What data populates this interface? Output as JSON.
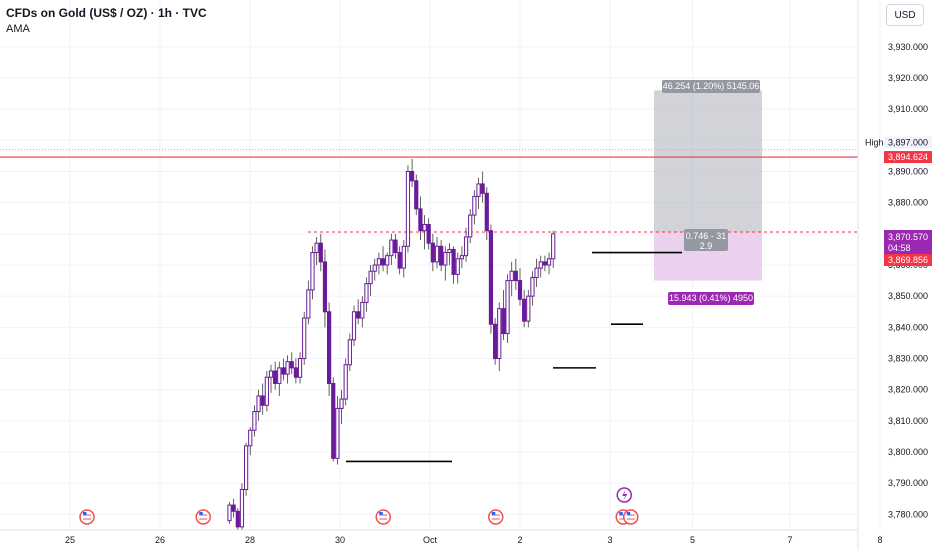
{
  "header": {
    "title": "CFDs on Gold (US$ / OZ) · 1h · TVC",
    "indicator": "AMA",
    "currency": "USD"
  },
  "colors": {
    "candle": "#6a1b9a",
    "wick": "#3b3b3b",
    "resistance": "#f23645",
    "target_zone": "#b2b5be",
    "stop_zone": "#e1bee7",
    "price_tag": "#9c27b0",
    "event_red": "#ef5350"
  },
  "chart_data": {
    "type": "candlestick",
    "symbol": "CFDs on Gold (US$ / OZ)",
    "interval": "1h",
    "source": "TVC",
    "ylim": [
      3775,
      3945
    ],
    "y_ticks": [
      {
        "value": 3780,
        "label": "3,780.000"
      },
      {
        "value": 3790,
        "label": "3,790.000"
      },
      {
        "value": 3800,
        "label": "3,800.000"
      },
      {
        "value": 3810,
        "label": "3,810.000"
      },
      {
        "value": 3820,
        "label": "3,820.000"
      },
      {
        "value": 3830,
        "label": "3,830.000"
      },
      {
        "value": 3840,
        "label": "3,840.000"
      },
      {
        "value": 3850,
        "label": "3,850.000"
      },
      {
        "value": 3860,
        "label": "3,860.000"
      },
      {
        "value": 3870,
        "label": "3,870.000"
      },
      {
        "value": 3880,
        "label": "3,880.000"
      },
      {
        "value": 3890,
        "label": "3,890.000"
      },
      {
        "value": 3900,
        "label": "3,900.000"
      },
      {
        "value": 3910,
        "label": "3,910.000"
      },
      {
        "value": 3920,
        "label": "3,920.000"
      },
      {
        "value": 3930,
        "label": "3,930.000"
      }
    ],
    "x_ticks": [
      {
        "t": 0,
        "label": "25"
      },
      {
        "t": 24,
        "label": "26"
      },
      {
        "t": 48,
        "label": "28"
      },
      {
        "t": 72,
        "label": "30"
      },
      {
        "t": 96,
        "label": "Oct"
      },
      {
        "t": 120,
        "label": "2"
      },
      {
        "t": 144,
        "label": "3"
      },
      {
        "t": 166,
        "label": "5"
      },
      {
        "t": 192,
        "label": "7"
      },
      {
        "t": 216,
        "label": "8"
      }
    ],
    "candles": [
      [
        3778,
        3784,
        3777,
        3783
      ],
      [
        3783,
        3785,
        3779,
        3781
      ],
      [
        3781,
        3782,
        3775,
        3776
      ],
      [
        3776,
        3790,
        3775,
        3788
      ],
      [
        3788,
        3803,
        3786,
        3802
      ],
      [
        3802,
        3808,
        3799,
        3807
      ],
      [
        3807,
        3815,
        3805,
        3813
      ],
      [
        3813,
        3820,
        3810,
        3818
      ],
      [
        3818,
        3822,
        3812,
        3815
      ],
      [
        3815,
        3826,
        3813,
        3824
      ],
      [
        3824,
        3828,
        3819,
        3826
      ],
      [
        3826,
        3829,
        3820,
        3822
      ],
      [
        3822,
        3829,
        3818,
        3827
      ],
      [
        3827,
        3830,
        3823,
        3825
      ],
      [
        3825,
        3831,
        3822,
        3829
      ],
      [
        3829,
        3832,
        3825,
        3827
      ],
      [
        3827,
        3830,
        3822,
        3824
      ],
      [
        3824,
        3832,
        3822,
        3830
      ],
      [
        3830,
        3845,
        3828,
        3843
      ],
      [
        3843,
        3855,
        3841,
        3852
      ],
      [
        3852,
        3866,
        3849,
        3864
      ],
      [
        3864,
        3869,
        3860,
        3867
      ],
      [
        3867,
        3870,
        3858,
        3861
      ],
      [
        3861,
        3865,
        3840,
        3845
      ],
      [
        3845,
        3848,
        3818,
        3822
      ],
      [
        3822,
        3824,
        3797,
        3798
      ],
      [
        3798,
        3818,
        3796,
        3814
      ],
      [
        3814,
        3820,
        3809,
        3817
      ],
      [
        3817,
        3830,
        3815,
        3828
      ],
      [
        3828,
        3838,
        3826,
        3836
      ],
      [
        3836,
        3847,
        3834,
        3845
      ],
      [
        3845,
        3849,
        3841,
        3843
      ],
      [
        3843,
        3850,
        3840,
        3848
      ],
      [
        3848,
        3856,
        3845,
        3854
      ],
      [
        3854,
        3860,
        3850,
        3858
      ],
      [
        3858,
        3862,
        3855,
        3860
      ],
      [
        3860,
        3864,
        3857,
        3862
      ],
      [
        3862,
        3866,
        3858,
        3860
      ],
      [
        3860,
        3864,
        3857,
        3863
      ],
      [
        3863,
        3870,
        3860,
        3868
      ],
      [
        3868,
        3870,
        3862,
        3864
      ],
      [
        3864,
        3866,
        3857,
        3859
      ],
      [
        3859,
        3868,
        3856,
        3866
      ],
      [
        3866,
        3892,
        3864,
        3890
      ],
      [
        3890,
        3894,
        3885,
        3887
      ],
      [
        3887,
        3889,
        3876,
        3878
      ],
      [
        3878,
        3882,
        3868,
        3871
      ],
      [
        3871,
        3876,
        3865,
        3873
      ],
      [
        3873,
        3875,
        3865,
        3867
      ],
      [
        3867,
        3870,
        3858,
        3861
      ],
      [
        3861,
        3869,
        3859,
        3866
      ],
      [
        3866,
        3868,
        3858,
        3860
      ],
      [
        3860,
        3866,
        3855,
        3864
      ],
      [
        3864,
        3867,
        3860,
        3865
      ],
      [
        3865,
        3866,
        3854,
        3857
      ],
      [
        3857,
        3864,
        3854,
        3862
      ],
      [
        3862,
        3866,
        3859,
        3863
      ],
      [
        3863,
        3872,
        3861,
        3869
      ],
      [
        3869,
        3878,
        3867,
        3876
      ],
      [
        3876,
        3884,
        3873,
        3882
      ],
      [
        3882,
        3888,
        3878,
        3886
      ],
      [
        3886,
        3890,
        3880,
        3883
      ],
      [
        3883,
        3885,
        3868,
        3871
      ],
      [
        3871,
        3873,
        3838,
        3841
      ],
      [
        3841,
        3843,
        3828,
        3830
      ],
      [
        3830,
        3848,
        3826,
        3846
      ],
      [
        3846,
        3852,
        3836,
        3838
      ],
      [
        3838,
        3857,
        3835,
        3855
      ],
      [
        3855,
        3861,
        3850,
        3858
      ],
      [
        3858,
        3862,
        3852,
        3855
      ],
      [
        3855,
        3859,
        3847,
        3849
      ],
      [
        3849,
        3852,
        3840,
        3842
      ],
      [
        3842,
        3852,
        3840,
        3850
      ],
      [
        3850,
        3858,
        3847,
        3856
      ],
      [
        3856,
        3862,
        3853,
        3859
      ],
      [
        3859,
        3863,
        3856,
        3861
      ],
      [
        3861,
        3863,
        3858,
        3860
      ],
      [
        3860,
        3864,
        3857,
        3862
      ],
      [
        3862,
        3871,
        3859,
        3870
      ]
    ],
    "levels": {
      "high": 3897.0,
      "resistance": 3894.624,
      "current": 3870.57,
      "previous_close": 3869.856
    },
    "position": {
      "entry": 3870.57,
      "target": 3916.0,
      "stop": 3855.0
    },
    "support_lines": [
      3797,
      3827,
      3841,
      3864
    ]
  },
  "right_axis_labels": {
    "high_label": "High",
    "high_value": "3,897.000",
    "resistance_value": "3,894.624",
    "current_value": "3,870.570",
    "countdown": "04:58",
    "previous_value": "3,869.856"
  },
  "position_labels": {
    "target": "46.254 (1.20%) 5145.06",
    "ratio": "0.746 - 31",
    "ratio_sub": "2.9",
    "stop": "15.943 (0.41%) 4950"
  },
  "events": [
    {
      "type": "flag",
      "t": 4
    },
    {
      "type": "flag",
      "t": 35
    },
    {
      "type": "flag",
      "t": 83
    },
    {
      "type": "flag",
      "t": 113
    },
    {
      "type": "flag",
      "t": 147
    },
    {
      "type": "flag",
      "t": 149
    },
    {
      "type": "lightning-icon",
      "t": 147
    }
  ]
}
